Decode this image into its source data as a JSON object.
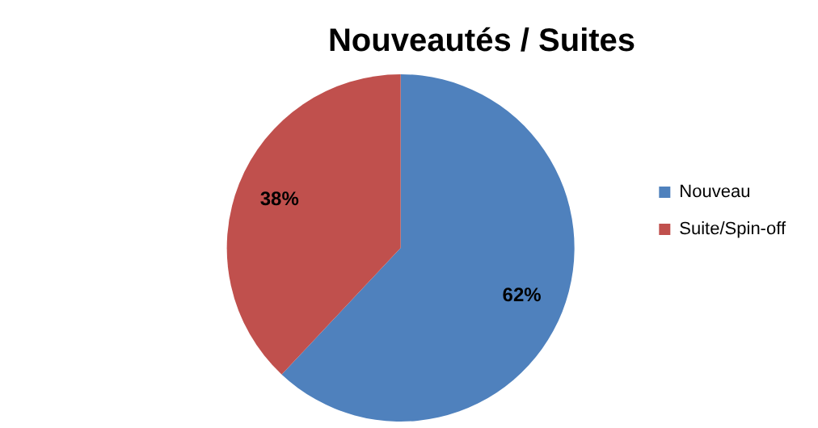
{
  "chart_data": {
    "type": "pie",
    "title": "Nouveautés / Suites",
    "categories": [
      "Nouveau",
      "Suite/Spin-off"
    ],
    "values": [
      62,
      38
    ],
    "colors": [
      "#4f81bd",
      "#c0504d"
    ],
    "value_labels": [
      "62%",
      "38%"
    ],
    "legend": "right"
  }
}
